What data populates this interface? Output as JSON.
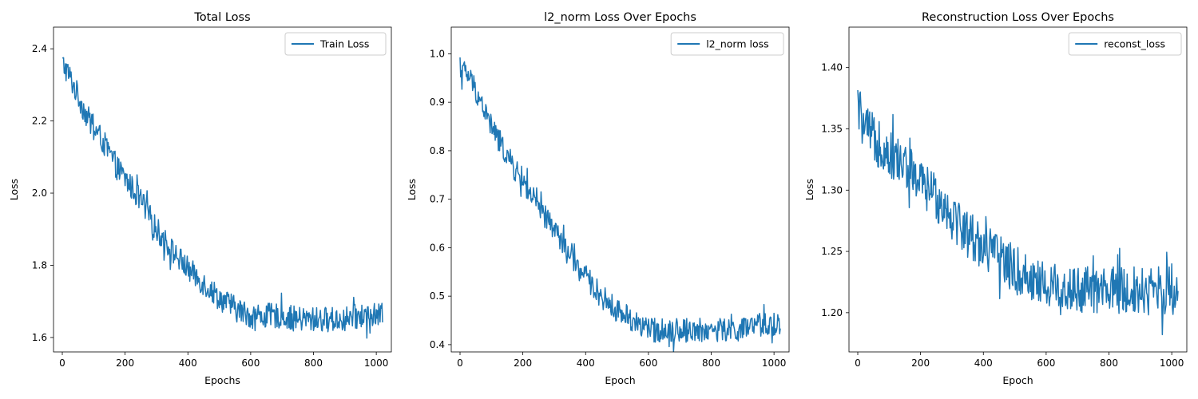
{
  "chart_data": [
    {
      "type": "line",
      "title": "Total Loss",
      "xlabel": "Epochs",
      "ylabel": "Loss",
      "xlim": [
        -28,
        1048
      ],
      "ylim": [
        1.56,
        2.46
      ],
      "xticks": [
        0,
        200,
        400,
        600,
        800,
        1000
      ],
      "yticks": [
        1.6,
        1.8,
        2.0,
        2.2,
        2.4
      ],
      "ytick_labels": [
        "1.6",
        "1.8",
        "2.0",
        "2.2",
        "2.4"
      ],
      "legend_position": "top-right",
      "series": [
        {
          "name": "Train Loss",
          "color": "#1f77b4",
          "x": [
            0,
            20,
            40,
            60,
            80,
            100,
            125,
            150,
            175,
            200,
            225,
            250,
            275,
            300,
            350,
            400,
            450,
            500,
            550,
            600,
            650,
            700,
            750,
            800,
            850,
            900,
            950,
            1000,
            1020
          ],
          "y": [
            2.36,
            2.33,
            2.29,
            2.25,
            2.21,
            2.18,
            2.15,
            2.11,
            2.07,
            2.04,
            2.01,
            1.98,
            1.94,
            1.9,
            1.84,
            1.79,
            1.75,
            1.71,
            1.68,
            1.66,
            1.66,
            1.66,
            1.65,
            1.65,
            1.65,
            1.65,
            1.66,
            1.66,
            1.66
          ],
          "noise": 0.035
        }
      ]
    },
    {
      "type": "line",
      "title": "l2_norm Loss Over Epochs",
      "xlabel": "Epoch",
      "ylabel": "Loss",
      "xlim": [
        -28,
        1048
      ],
      "ylim": [
        0.385,
        1.055
      ],
      "xticks": [
        0,
        200,
        400,
        600,
        800,
        1000
      ],
      "yticks": [
        0.4,
        0.5,
        0.6,
        0.7,
        0.8,
        0.9,
        1.0
      ],
      "ytick_labels": [
        "0.4",
        "0.5",
        "0.6",
        "0.7",
        "0.8",
        "0.9",
        "1.0"
      ],
      "legend_position": "top-right",
      "series": [
        {
          "name": "l2_norm loss",
          "color": "#1f77b4",
          "x": [
            0,
            20,
            40,
            60,
            80,
            100,
            125,
            150,
            175,
            200,
            225,
            250,
            275,
            300,
            350,
            400,
            450,
            500,
            550,
            600,
            650,
            700,
            750,
            800,
            850,
            900,
            950,
            1000,
            1020
          ],
          "y": [
            0.97,
            0.96,
            0.94,
            0.91,
            0.88,
            0.85,
            0.82,
            0.79,
            0.76,
            0.74,
            0.71,
            0.68,
            0.66,
            0.64,
            0.58,
            0.54,
            0.5,
            0.47,
            0.45,
            0.43,
            0.43,
            0.43,
            0.43,
            0.43,
            0.43,
            0.43,
            0.44,
            0.44,
            0.44
          ],
          "noise": 0.025
        }
      ]
    },
    {
      "type": "line",
      "title": "Reconstruction Loss Over Epochs",
      "xlabel": "Epoch",
      "ylabel": "Loss",
      "xlim": [
        -28,
        1048
      ],
      "ylim": [
        1.168,
        1.433
      ],
      "xticks": [
        0,
        200,
        400,
        600,
        800,
        1000
      ],
      "yticks": [
        1.2,
        1.25,
        1.3,
        1.35,
        1.4
      ],
      "ytick_labels": [
        "1.20",
        "1.25",
        "1.30",
        "1.35",
        "1.40"
      ],
      "legend_position": "top-right",
      "series": [
        {
          "name": "reconst_loss",
          "color": "#1f77b4",
          "x": [
            0,
            20,
            40,
            60,
            80,
            100,
            150,
            200,
            250,
            300,
            350,
            400,
            450,
            500,
            550,
            600,
            650,
            700,
            750,
            800,
            850,
            900,
            950,
            1000,
            1020
          ],
          "y": [
            1.37,
            1.35,
            1.345,
            1.34,
            1.335,
            1.33,
            1.32,
            1.305,
            1.295,
            1.28,
            1.265,
            1.255,
            1.245,
            1.235,
            1.228,
            1.222,
            1.22,
            1.218,
            1.218,
            1.218,
            1.218,
            1.218,
            1.218,
            1.218,
            1.218
          ],
          "noise": 0.02
        }
      ]
    }
  ]
}
